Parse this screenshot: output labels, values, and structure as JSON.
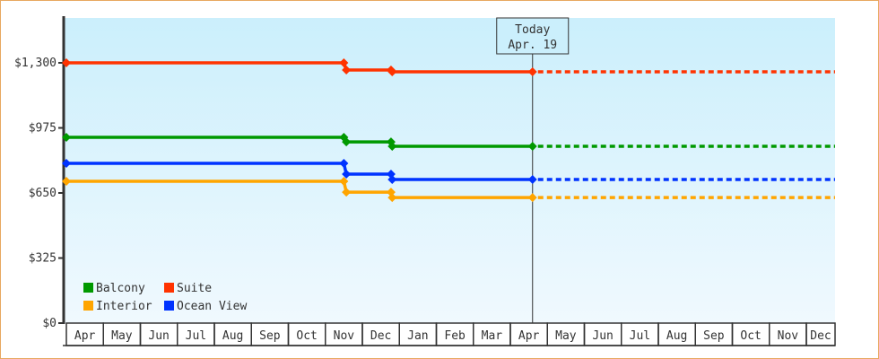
{
  "chart_data": {
    "type": "line",
    "step": true,
    "title": "",
    "xlabel": "",
    "ylabel": "",
    "ylim": [
      0,
      1430
    ],
    "y_ticks": [
      {
        "value": 0,
        "label": "$0"
      },
      {
        "value": 325,
        "label": "$325"
      },
      {
        "value": 650,
        "label": "$650"
      },
      {
        "value": 975,
        "label": "$975"
      },
      {
        "value": 1300,
        "label": "$1,300"
      }
    ],
    "x_ticks": [
      "Apr",
      "May",
      "Jun",
      "Jul",
      "Aug",
      "Sep",
      "Oct",
      "Nov",
      "Dec",
      "Jan",
      "Feb",
      "Mar",
      "Apr",
      "May",
      "Jun",
      "Jul",
      "Aug",
      "Sep",
      "Oct",
      "Nov",
      "Dec"
    ],
    "today": {
      "title": "Today",
      "date_label": "Apr. 19",
      "month": "Apr",
      "occurrence": 2,
      "day": 19
    },
    "projection_style": "dotted, extended to end of axis",
    "grid": false,
    "background": "gradient light blue",
    "legend": {
      "placement": "bottom-left"
    },
    "series": [
      {
        "name": "Suite",
        "color": "#ff3300",
        "points": [
          {
            "month": "Apr",
            "occurrence": 1,
            "day": 1,
            "value": 1300
          },
          {
            "month": "Nov",
            "occurrence": 1,
            "day": 16,
            "value": 1300
          },
          {
            "month": "Nov",
            "occurrence": 1,
            "day": 18,
            "value": 1264
          },
          {
            "month": "Dec",
            "occurrence": 1,
            "day": 25,
            "value": 1264
          },
          {
            "month": "Dec",
            "occurrence": 1,
            "day": 26,
            "value": 1255
          },
          {
            "month": "Apr",
            "occurrence": 2,
            "day": 19,
            "value": 1255
          }
        ]
      },
      {
        "name": "Balcony",
        "color": "#009900",
        "points": [
          {
            "month": "Apr",
            "occurrence": 1,
            "day": 1,
            "value": 928
          },
          {
            "month": "Nov",
            "occurrence": 1,
            "day": 16,
            "value": 928
          },
          {
            "month": "Nov",
            "occurrence": 1,
            "day": 18,
            "value": 905
          },
          {
            "month": "Dec",
            "occurrence": 1,
            "day": 25,
            "value": 905
          },
          {
            "month": "Dec",
            "occurrence": 1,
            "day": 26,
            "value": 883
          },
          {
            "month": "Apr",
            "occurrence": 2,
            "day": 19,
            "value": 883
          }
        ]
      },
      {
        "name": "Ocean View",
        "color": "#0033ff",
        "points": [
          {
            "month": "Apr",
            "occurrence": 1,
            "day": 1,
            "value": 798
          },
          {
            "month": "Nov",
            "occurrence": 1,
            "day": 16,
            "value": 798
          },
          {
            "month": "Nov",
            "occurrence": 1,
            "day": 18,
            "value": 744
          },
          {
            "month": "Dec",
            "occurrence": 1,
            "day": 25,
            "value": 744
          },
          {
            "month": "Dec",
            "occurrence": 1,
            "day": 26,
            "value": 717
          },
          {
            "month": "Apr",
            "occurrence": 2,
            "day": 19,
            "value": 717
          }
        ]
      },
      {
        "name": "Interior",
        "color": "#ffa500",
        "points": [
          {
            "month": "Apr",
            "occurrence": 1,
            "day": 1,
            "value": 708
          },
          {
            "month": "Nov",
            "occurrence": 1,
            "day": 16,
            "value": 708
          },
          {
            "month": "Nov",
            "occurrence": 1,
            "day": 18,
            "value": 654
          },
          {
            "month": "Dec",
            "occurrence": 1,
            "day": 25,
            "value": 654
          },
          {
            "month": "Dec",
            "occurrence": 1,
            "day": 26,
            "value": 627
          },
          {
            "month": "Apr",
            "occurrence": 2,
            "day": 19,
            "value": 627
          }
        ]
      }
    ],
    "legend_order": [
      "Balcony",
      "Suite",
      "Interior",
      "Ocean View"
    ]
  }
}
